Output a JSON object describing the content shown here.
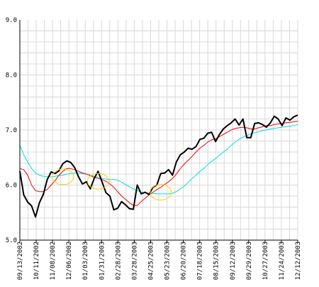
{
  "chart_data": {
    "type": "line",
    "title": "",
    "xlabel": "",
    "ylabel": "",
    "ylim": [
      5.0,
      9.0
    ],
    "y_ticks": [
      "5.0",
      "6.0",
      "7.0",
      "8.0",
      "9.0"
    ],
    "x_ticks": [
      "09/13/2002",
      "10/11/2002",
      "11/08/2002",
      "12/06/2002",
      "01/03/2003",
      "01/31/2003",
      "02/28/2003",
      "03/28/2003",
      "04/25/2003",
      "05/23/2003",
      "06/20/2003",
      "07/18/2003",
      "08/15/2003",
      "09/12/2003",
      "09/29/2003",
      "10/27/2003",
      "11/24/2003",
      "12/12/2003"
    ],
    "grid": true,
    "colors": {
      "price": "#000000",
      "ma_short": "#ee0000",
      "ma_long": "#00dddd",
      "highlight": "#ffcc00",
      "grid": "#d8d8d8",
      "axis": "#000000"
    },
    "series": [
      {
        "key": "price",
        "values": [
          6.25,
          5.82,
          5.69,
          5.62,
          5.42,
          5.68,
          5.83,
          6.1,
          6.24,
          6.21,
          6.26,
          6.39,
          6.44,
          6.41,
          6.32,
          6.15,
          6.02,
          6.06,
          5.93,
          6.12,
          6.25,
          6.06,
          5.86,
          5.8,
          5.55,
          5.58,
          5.7,
          5.64,
          5.57,
          5.56,
          6.0,
          5.84,
          5.87,
          5.83,
          5.96,
          6.0,
          6.21,
          6.22,
          6.28,
          6.18,
          6.42,
          6.55,
          6.6,
          6.67,
          6.65,
          6.7,
          6.83,
          6.85,
          6.94,
          6.96,
          6.79,
          6.92,
          7.02,
          7.08,
          7.13,
          7.2,
          7.09,
          7.2,
          6.86,
          6.86,
          7.12,
          7.13,
          7.1,
          7.05,
          7.13,
          7.25,
          7.2,
          7.08,
          7.22,
          7.18,
          7.24,
          7.27
        ]
      },
      {
        "key": "ma_short",
        "values": [
          6.3,
          6.28,
          6.18,
          6.0,
          5.9,
          5.88,
          5.88,
          5.92,
          6.0,
          6.08,
          6.18,
          6.25,
          6.3,
          6.3,
          6.28,
          6.25,
          6.22,
          6.2,
          6.17,
          6.14,
          6.12,
          6.1,
          6.07,
          6.02,
          5.96,
          5.88,
          5.8,
          5.74,
          5.68,
          5.63,
          5.63,
          5.7,
          5.76,
          5.82,
          5.87,
          5.92,
          5.96,
          6.01,
          6.06,
          6.12,
          6.2,
          6.3,
          6.38,
          6.45,
          6.52,
          6.6,
          6.67,
          6.72,
          6.78,
          6.82,
          6.84,
          6.88,
          6.92,
          6.96,
          7.0,
          7.03,
          7.04,
          7.05,
          7.04,
          7.02,
          7.02,
          7.04,
          7.06,
          7.08,
          7.08,
          7.1,
          7.11,
          7.12,
          7.13,
          7.14,
          7.15,
          7.16
        ]
      },
      {
        "key": "ma_long",
        "values": [
          6.72,
          6.55,
          6.42,
          6.3,
          6.22,
          6.18,
          6.16,
          6.15,
          6.15,
          6.16,
          6.17,
          6.18,
          6.2,
          6.21,
          6.22,
          6.22,
          6.21,
          6.2,
          6.18,
          6.16,
          6.14,
          6.12,
          6.11,
          6.1,
          6.1,
          6.09,
          6.05,
          6.01,
          5.97,
          5.93,
          5.9,
          5.87,
          5.86,
          5.85,
          5.85,
          5.84,
          5.84,
          5.84,
          5.84,
          5.85,
          5.88,
          5.93,
          5.98,
          6.05,
          6.12,
          6.18,
          6.25,
          6.3,
          6.37,
          6.43,
          6.48,
          6.54,
          6.6,
          6.65,
          6.72,
          6.78,
          6.83,
          6.87,
          6.9,
          6.93,
          6.95,
          6.97,
          6.99,
          7.0,
          7.02,
          7.03,
          7.04,
          7.05,
          7.06,
          7.07,
          7.08,
          7.1
        ]
      }
    ],
    "highlights": [
      {
        "x_index": 11,
        "y": 6.15
      },
      {
        "x_index": 20,
        "y": 6.07
      },
      {
        "x_index": 36,
        "y": 5.87
      }
    ]
  }
}
